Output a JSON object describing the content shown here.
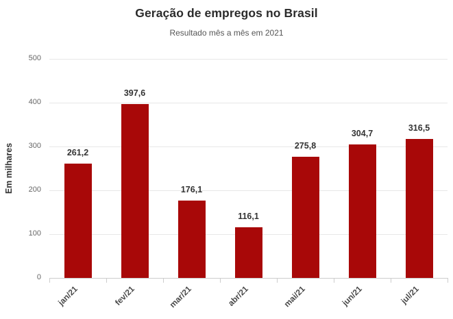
{
  "header": {
    "title": "Geração de empregos no Brasil",
    "subtitle": "Resultado mês a mês em 2021"
  },
  "chart_data": {
    "type": "bar",
    "title": "Geração de empregos no Brasil",
    "subtitle": "Resultado mês a mês em 2021",
    "categories": [
      "jan/21",
      "fev/21",
      "mar/21",
      "abr/21",
      "mai/21",
      "jun/21",
      "jul/21"
    ],
    "values": [
      261.2,
      397.6,
      176.1,
      116.1,
      275.8,
      304.7,
      316.5
    ],
    "value_labels": [
      "261,2",
      "397,6",
      "176,1",
      "116,1",
      "275,8",
      "304,7",
      "316,5"
    ],
    "xlabel": "",
    "ylabel": "Em milhares",
    "ylim": [
      0,
      500
    ],
    "yticks": [
      0,
      100,
      200,
      300,
      400,
      500
    ],
    "grid": true,
    "legend": "none",
    "colors": {
      "bar": "#a80808",
      "gridline": "#e7e7e7",
      "axis": "#cccccc",
      "title_text": "#2b2b2b",
      "subtitle_text": "#555555",
      "tick_text": "#666666",
      "value_text": "#333333"
    }
  }
}
